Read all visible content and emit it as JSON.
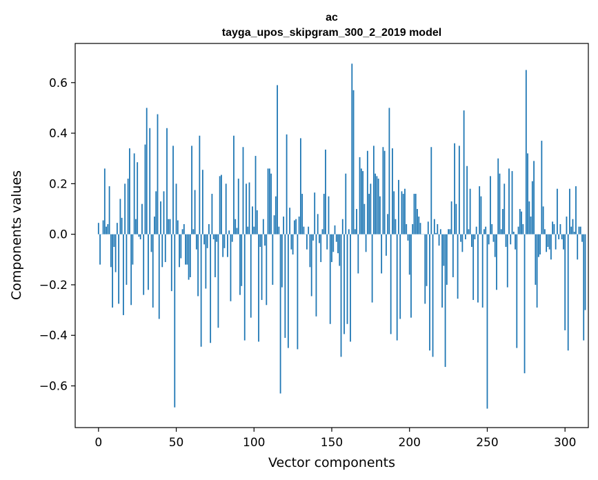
{
  "chart_data": {
    "type": "bar",
    "title": "ac",
    "subtitle": "tayga_upos_skipgram_300_2_2019 model",
    "xlabel": "Vector components",
    "ylabel": "Components values",
    "xlim": [
      -15,
      315
    ],
    "ylim": [
      -0.765,
      0.755
    ],
    "xticks": [
      0,
      50,
      100,
      150,
      200,
      250,
      300
    ],
    "yticks": [
      -0.6,
      -0.4,
      -0.2,
      0.0,
      0.2,
      0.4,
      0.6
    ],
    "xtick_labels": [
      "0",
      "50",
      "100",
      "150",
      "200",
      "250",
      "300"
    ],
    "ytick_labels": [
      "−0.6",
      "−0.4",
      "−0.2",
      "0.0",
      "0.2",
      "0.4",
      "0.6"
    ],
    "grid": false,
    "bar_color": "#1f77b4",
    "values": [
      0.045,
      -0.12,
      0.0,
      0.055,
      0.26,
      0.03,
      0.04,
      0.19,
      -0.13,
      -0.29,
      -0.05,
      -0.15,
      0.045,
      -0.275,
      0.14,
      0.065,
      -0.32,
      0.2,
      -0.2,
      0.22,
      0.34,
      -0.28,
      -0.12,
      0.32,
      0.06,
      0.285,
      -0.01,
      -0.02,
      0.12,
      -0.24,
      0.355,
      0.5,
      -0.22,
      0.42,
      -0.07,
      -0.29,
      0.07,
      0.17,
      0.475,
      -0.335,
      0.13,
      -0.13,
      0.17,
      -0.11,
      0.42,
      0.06,
      0.06,
      -0.225,
      0.35,
      -0.685,
      0.2,
      0.055,
      -0.13,
      -0.095,
      0.02,
      0.04,
      -0.12,
      -0.12,
      -0.18,
      -0.17,
      0.35,
      0.02,
      0.175,
      -0.06,
      -0.245,
      0.39,
      -0.445,
      0.255,
      -0.04,
      -0.215,
      -0.055,
      0.04,
      -0.43,
      0.16,
      -0.02,
      -0.17,
      -0.03,
      -0.37,
      0.23,
      0.235,
      -0.09,
      -0.055,
      0.2,
      -0.09,
      0.015,
      -0.265,
      -0.03,
      0.39,
      0.06,
      0.025,
      0.22,
      -0.24,
      -0.205,
      0.345,
      -0.42,
      0.2,
      0.03,
      0.205,
      -0.33,
      0.11,
      0.03,
      0.31,
      0.095,
      -0.425,
      -0.05,
      -0.26,
      0.06,
      -0.045,
      -0.28,
      0.26,
      0.26,
      0.24,
      -0.2,
      0.075,
      0.15,
      0.59,
      0.03,
      -0.63,
      -0.21,
      0.07,
      -0.41,
      0.395,
      -0.45,
      0.105,
      -0.06,
      -0.08,
      0.055,
      0.06,
      -0.455,
      0.07,
      0.38,
      0.16,
      0.03,
      0.0,
      -0.06,
      0.03,
      -0.13,
      -0.245,
      -0.025,
      0.165,
      -0.325,
      0.08,
      -0.035,
      -0.11,
      0.02,
      0.16,
      0.335,
      -0.06,
      0.15,
      -0.355,
      -0.11,
      -0.07,
      0.035,
      -0.03,
      -0.075,
      -0.125,
      -0.485,
      0.06,
      -0.395,
      0.24,
      -0.355,
      0.02,
      -0.425,
      0.675,
      0.57,
      0.02,
      0.1,
      -0.155,
      0.305,
      0.26,
      0.25,
      0.12,
      -0.07,
      0.33,
      0.16,
      0.2,
      -0.27,
      0.35,
      0.24,
      0.23,
      0.22,
      0.15,
      -0.155,
      0.345,
      0.33,
      -0.085,
      0.08,
      0.5,
      -0.395,
      0.34,
      0.17,
      0.06,
      -0.42,
      0.215,
      -0.335,
      0.17,
      0.16,
      0.18,
      0.04,
      -0.025,
      -0.16,
      -0.33,
      0.04,
      0.16,
      0.16,
      0.1,
      0.07,
      0.045,
      0.0,
      0.0,
      -0.275,
      -0.205,
      0.05,
      -0.46,
      0.345,
      -0.485,
      0.06,
      0.005,
      0.04,
      -0.045,
      0.02,
      -0.29,
      -0.125,
      -0.525,
      -0.2,
      0.02,
      0.02,
      0.13,
      -0.17,
      0.36,
      0.12,
      -0.255,
      0.35,
      -0.03,
      -0.07,
      0.49,
      -0.02,
      0.27,
      0.02,
      0.18,
      -0.05,
      -0.26,
      -0.02,
      0.03,
      -0.27,
      0.19,
      0.15,
      -0.29,
      0.02,
      0.03,
      -0.69,
      -0.04,
      0.23,
      0.04,
      -0.03,
      -0.09,
      -0.22,
      0.3,
      0.24,
      0.02,
      0.1,
      0.2,
      -0.05,
      -0.21,
      0.26,
      -0.04,
      0.25,
      0.01,
      -0.06,
      -0.45,
      0.03,
      0.1,
      0.09,
      0.04,
      -0.55,
      0.65,
      0.32,
      0.13,
      0.07,
      0.21,
      0.29,
      -0.2,
      -0.29,
      -0.09,
      -0.08,
      0.37,
      0.11,
      0.02,
      -0.07,
      -0.05,
      -0.06,
      -0.1,
      0.05,
      0.04,
      -0.06,
      0.18,
      -0.02,
      0.04,
      -0.02,
      -0.06,
      -0.38,
      0.07,
      -0.46,
      0.18,
      0.03,
      0.06,
      0.01,
      0.19,
      -0.1,
      0.03,
      0.03,
      -0.03,
      -0.42,
      -0.3
    ]
  }
}
